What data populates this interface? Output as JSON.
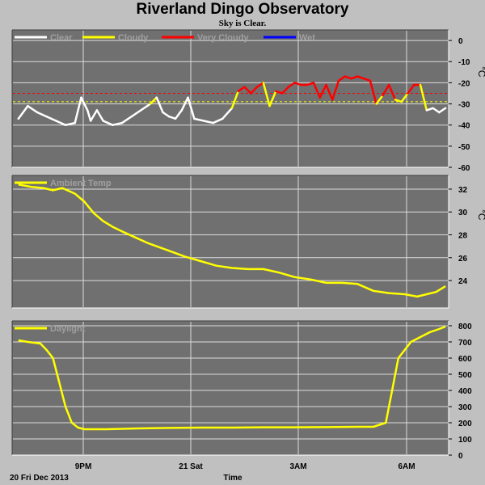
{
  "title": "Riverland Dingo Observatory",
  "subtitle": "Sky is Clear.",
  "date_label": "20 Fri Dec 2013",
  "x_axis_title": "Time",
  "x_ticks": [
    "9PM",
    "21 Sat",
    "3AM",
    "6AM"
  ],
  "colors": {
    "background": "#c0c0c0",
    "plot_bg": "#707070",
    "grid": "#dcdcdc",
    "clear": "#ffffff",
    "cloudy": "#ffff00",
    "very_cloudy": "#ff0000",
    "wet": "#0000ff",
    "temp": "#ffff00",
    "daylight": "#ffff00"
  },
  "chart_data": [
    {
      "type": "line",
      "y_unit": "°C",
      "ylim": [
        -60,
        5
      ],
      "y_ticks": [
        0,
        -10,
        -20,
        -30,
        -40,
        -50,
        -60
      ],
      "x_range_hours": [
        18.0,
        31.9
      ],
      "legend": [
        "Clear",
        "Cloudy",
        "Very Cloudy",
        "Wet"
      ],
      "thresholds": [
        {
          "value": -25,
          "color": "#ff0000",
          "style": "dashed"
        },
        {
          "value": -29,
          "color": "#ffff00",
          "style": "dashed"
        }
      ],
      "series": {
        "x": [
          18.2,
          18.5,
          18.8,
          19.1,
          19.4,
          19.7,
          20.0,
          20.2,
          20.4,
          20.5,
          20.7,
          20.9,
          21.2,
          21.5,
          21.8,
          22.1,
          22.4,
          22.6,
          22.8,
          23.0,
          23.2,
          23.4,
          23.6,
          23.8,
          24.1,
          24.4,
          24.7,
          25.0,
          25.2,
          25.4,
          25.6,
          25.8,
          26.0,
          26.2,
          26.4,
          26.6,
          26.8,
          27.0,
          27.2,
          27.4,
          27.6,
          27.8,
          28.0,
          28.2,
          28.4,
          28.6,
          28.8,
          29.0,
          29.2,
          29.4,
          29.6,
          29.8,
          30.0,
          30.2,
          30.4,
          30.6,
          30.8,
          31.0,
          31.2,
          31.4,
          31.6,
          31.8
        ],
        "y": [
          -37,
          -31,
          -34,
          -36,
          -38,
          -40,
          -39,
          -27,
          -33,
          -38,
          -33,
          -38,
          -40,
          -39,
          -36,
          -33,
          -30,
          -27,
          -34,
          -36,
          -37,
          -33,
          -27,
          -37,
          -38,
          -39,
          -37,
          -32,
          -24,
          -22,
          -25,
          -22,
          -20,
          -31,
          -24,
          -25,
          -22,
          -20,
          -21,
          -21,
          -20,
          -27,
          -21,
          -28,
          -19,
          -17,
          -18,
          -17,
          -18,
          -19,
          -30,
          -26,
          -21,
          -28,
          -29,
          -25,
          -21,
          -21,
          -33,
          -32,
          -34,
          -32
        ]
      }
    },
    {
      "type": "line",
      "y_unit": "°C",
      "ylim": [
        21.6,
        33.2
      ],
      "y_ticks": [
        32,
        30,
        28,
        26,
        24
      ],
      "x_range_hours": [
        18.0,
        31.9
      ],
      "legend": [
        "Ambient Temp"
      ],
      "series": {
        "name": "Ambient Temp",
        "x": [
          18.2,
          18.6,
          19.0,
          19.3,
          19.6,
          20.0,
          20.3,
          20.6,
          20.9,
          21.2,
          21.5,
          21.9,
          22.3,
          22.7,
          23.1,
          23.5,
          24.0,
          24.5,
          25.0,
          25.5,
          26.0,
          26.5,
          27.0,
          27.5,
          28.0,
          28.5,
          29.0,
          29.5,
          30.0,
          30.5,
          30.9,
          31.2,
          31.5,
          31.8
        ],
        "y": [
          32.4,
          32.2,
          32.1,
          31.9,
          32.1,
          31.6,
          30.9,
          29.9,
          29.2,
          28.7,
          28.3,
          27.8,
          27.3,
          26.9,
          26.5,
          26.1,
          25.7,
          25.3,
          25.1,
          25.0,
          25.0,
          24.7,
          24.3,
          24.1,
          23.8,
          23.8,
          23.7,
          23.1,
          22.9,
          22.8,
          22.6,
          22.8,
          23.0,
          23.5
        ]
      }
    },
    {
      "type": "line",
      "y_unit": "",
      "ylim": [
        0,
        830
      ],
      "y_ticks": [
        800,
        700,
        600,
        500,
        400,
        300,
        200,
        100,
        0
      ],
      "x_range_hours": [
        18.0,
        31.9
      ],
      "legend": [
        "Daylight"
      ],
      "series": {
        "name": "Daylight",
        "x": [
          18.2,
          18.5,
          18.9,
          19.1,
          19.3,
          19.5,
          19.7,
          19.9,
          20.1,
          20.3,
          20.5,
          21.0,
          22.0,
          23.0,
          24.0,
          25.0,
          26.0,
          27.0,
          28.0,
          29.0,
          29.5,
          29.9,
          30.1,
          30.3,
          30.5,
          30.7,
          31.0,
          31.3,
          31.6,
          31.8
        ],
        "y": [
          710,
          700,
          690,
          650,
          600,
          450,
          300,
          200,
          170,
          160,
          160,
          160,
          165,
          168,
          170,
          170,
          172,
          172,
          173,
          175,
          175,
          200,
          400,
          600,
          650,
          700,
          730,
          760,
          780,
          795
        ]
      }
    }
  ]
}
